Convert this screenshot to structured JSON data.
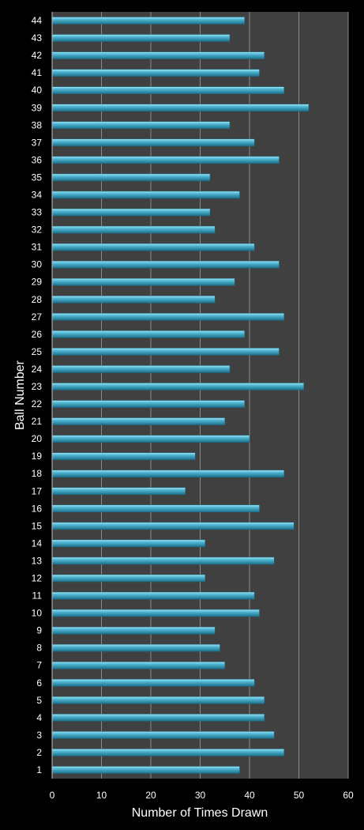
{
  "chart_data": {
    "type": "bar",
    "orientation": "horizontal",
    "xlabel": "Number of Times Drawn",
    "ylabel": "Ball Number",
    "xlim": [
      0,
      60
    ],
    "x_ticks": [
      "0",
      "10",
      "20",
      "30",
      "40",
      "50",
      "60"
    ],
    "grid": "vertical",
    "categories": [
      "1",
      "2",
      "3",
      "4",
      "5",
      "6",
      "7",
      "8",
      "9",
      "10",
      "11",
      "12",
      "13",
      "14",
      "15",
      "16",
      "17",
      "18",
      "19",
      "20",
      "21",
      "22",
      "23",
      "24",
      "25",
      "26",
      "27",
      "28",
      "29",
      "30",
      "31",
      "32",
      "33",
      "34",
      "35",
      "36",
      "37",
      "38",
      "39",
      "40",
      "41",
      "42",
      "43",
      "44"
    ],
    "values": [
      38,
      47,
      45,
      43,
      43,
      41,
      35,
      34,
      33,
      42,
      41,
      31,
      45,
      31,
      49,
      42,
      27,
      47,
      29,
      40,
      35,
      39,
      51,
      36,
      46,
      39,
      47,
      33,
      37,
      46,
      41,
      33,
      32,
      38,
      32,
      46,
      41,
      36,
      52,
      47,
      42,
      43,
      36,
      39
    ],
    "colors": {
      "background": "#000000",
      "plot_area": "#404040",
      "bar": "#3aa8c8",
      "bar_highlight": "#8fdcef",
      "bar_shadow": "#1a6a84",
      "grid": "#8a8a8a",
      "text": "#ffffff"
    }
  }
}
